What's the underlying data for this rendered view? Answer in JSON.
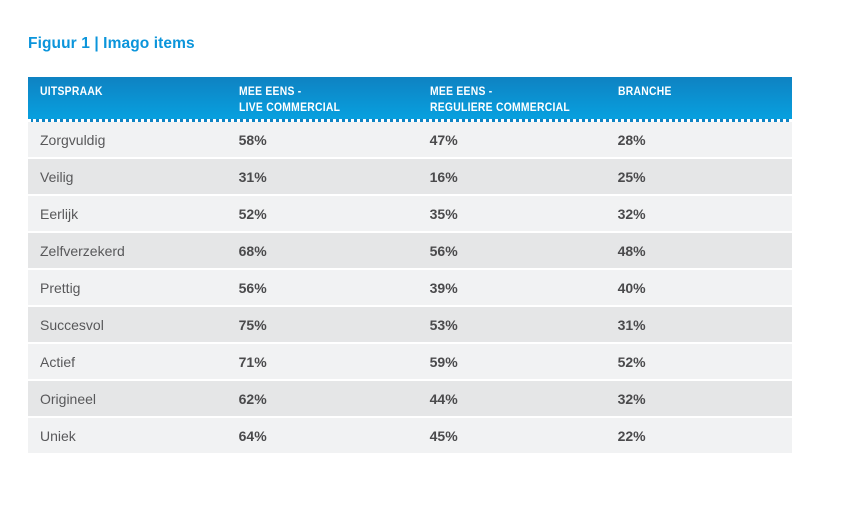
{
  "figure": {
    "title": "Figuur 1 | Imago items"
  },
  "table": {
    "headers": [
      {
        "line1": "UITSPRAAK",
        "line2": ""
      },
      {
        "line1": "MEE EENS -",
        "line2": "LIVE COMMERCIAL"
      },
      {
        "line1": "MEE EENS -",
        "line2": "REGULIERE COMMERCIAL"
      },
      {
        "line1": "BRANCHE",
        "line2": ""
      }
    ],
    "rows": [
      {
        "label": "Zorgvuldig",
        "live": "58%",
        "regulier": "47%",
        "branche": "28%"
      },
      {
        "label": "Veilig",
        "live": "31%",
        "regulier": "16%",
        "branche": "25%"
      },
      {
        "label": "Eerlijk",
        "live": "52%",
        "regulier": "35%",
        "branche": "32%"
      },
      {
        "label": "Zelfverzekerd",
        "live": "68%",
        "regulier": "56%",
        "branche": "48%"
      },
      {
        "label": "Prettig",
        "live": "56%",
        "regulier": "39%",
        "branche": "40%"
      },
      {
        "label": "Succesvol",
        "live": "75%",
        "regulier": "53%",
        "branche": "31%"
      },
      {
        "label": "Actief",
        "live": "71%",
        "regulier": "59%",
        "branche": "52%"
      },
      {
        "label": "Origineel",
        "live": "62%",
        "regulier": "44%",
        "branche": "32%"
      },
      {
        "label": "Uniek",
        "live": "64%",
        "regulier": "45%",
        "branche": "22%"
      }
    ]
  },
  "colors": {
    "title_blue": "#0B95DB",
    "header_gradient_top": "#0F82C2",
    "header_gradient_bottom": "#07A0DF",
    "header_text": "#FFFFFF",
    "row_light": "#F1F2F3",
    "row_dark": "#E5E6E7",
    "label_text": "#58585A",
    "value_text": "#4A4A4C"
  },
  "chart_data": {
    "type": "table",
    "title": "Figuur 1 | Imago items",
    "columns": [
      "UITSPRAAK",
      "MEE EENS - LIVE COMMERCIAL",
      "MEE EENS - REGULIERE COMMERCIAL",
      "BRANCHE"
    ],
    "row_labels": [
      "Zorgvuldig",
      "Veilig",
      "Eerlijk",
      "Zelfverzekerd",
      "Prettig",
      "Succesvol",
      "Actief",
      "Origineel",
      "Uniek"
    ],
    "series": [
      {
        "name": "MEE EENS - LIVE COMMERCIAL",
        "unit": "%",
        "values": [
          58,
          31,
          52,
          68,
          56,
          75,
          71,
          62,
          64
        ]
      },
      {
        "name": "MEE EENS - REGULIERE COMMERCIAL",
        "unit": "%",
        "values": [
          47,
          16,
          35,
          56,
          39,
          53,
          59,
          44,
          45
        ]
      },
      {
        "name": "BRANCHE",
        "unit": "%",
        "values": [
          28,
          25,
          32,
          48,
          40,
          31,
          52,
          32,
          22
        ]
      }
    ]
  }
}
